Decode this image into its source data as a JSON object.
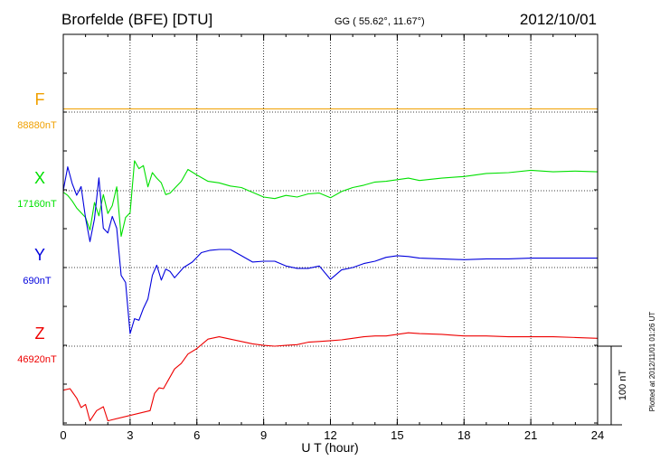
{
  "header": {
    "station": "Brorfelde (BFE)  [DTU]",
    "coords": "GG ( 55.62°,  11.67°)",
    "date": "2012/10/01"
  },
  "plot_note": "Plotted at 2012/11/01 01:26 UT",
  "scale_label": "100 nT",
  "colors": {
    "F": "#f0a000",
    "X": "#00e000",
    "Y": "#0000dd",
    "Z": "#ee0000"
  },
  "chart_data": {
    "type": "line",
    "xlabel": "U T (hour)",
    "xlim": [
      0,
      24
    ],
    "xticks": [
      0,
      3,
      6,
      9,
      12,
      15,
      18,
      21,
      24
    ],
    "grid": true,
    "series": [
      {
        "name": "F",
        "baseline_label": "88880nT",
        "baseline": 88880,
        "x": [
          0,
          24
        ],
        "y": [
          88884,
          88884
        ]
      },
      {
        "name": "X",
        "baseline_label": "17160nT",
        "baseline": 17160,
        "x": [
          0,
          0.2,
          0.4,
          0.6,
          0.8,
          1.0,
          1.2,
          1.4,
          1.6,
          1.8,
          2.0,
          2.2,
          2.4,
          2.6,
          2.8,
          3.0,
          3.2,
          3.4,
          3.6,
          3.8,
          4.0,
          4.2,
          4.4,
          4.6,
          4.8,
          5.0,
          5.3,
          5.6,
          6.0,
          6.5,
          7.0,
          7.5,
          8.0,
          8.5,
          9.0,
          9.5,
          10.0,
          10.5,
          11.0,
          11.5,
          12.0,
          12.5,
          13.0,
          13.5,
          14.0,
          14.5,
          15.0,
          15.5,
          16.0,
          17.0,
          18.0,
          19.0,
          20.0,
          21.0,
          22.0,
          23.0,
          24.0
        ],
        "y": [
          17158,
          17154,
          17147,
          17138,
          17132,
          17126,
          17110,
          17145,
          17128,
          17155,
          17131,
          17141,
          17165,
          17102,
          17126,
          17132,
          17198,
          17188,
          17192,
          17165,
          17183,
          17176,
          17170,
          17155,
          17157,
          17163,
          17172,
          17187,
          17180,
          17172,
          17170,
          17166,
          17164,
          17158,
          17152,
          17150,
          17154,
          17152,
          17156,
          17157,
          17151,
          17159,
          17164,
          17167,
          17171,
          17172,
          17174,
          17176,
          17173,
          17176,
          17178,
          17182,
          17183,
          17186,
          17184,
          17185,
          17184
        ]
      },
      {
        "name": "Y",
        "baseline_label": "690nT",
        "baseline": 690,
        "x": [
          0,
          0.2,
          0.4,
          0.6,
          0.8,
          1.0,
          1.2,
          1.4,
          1.6,
          1.8,
          2.0,
          2.2,
          2.4,
          2.6,
          2.8,
          3.0,
          3.2,
          3.4,
          3.6,
          3.8,
          4.0,
          4.2,
          4.4,
          4.6,
          4.8,
          5.0,
          5.4,
          5.8,
          6.2,
          6.6,
          7.0,
          7.5,
          8.0,
          8.5,
          9.0,
          9.5,
          10.0,
          10.5,
          11.0,
          11.5,
          12.0,
          12.5,
          13.0,
          13.5,
          14.0,
          14.5,
          15.0,
          15.5,
          16.0,
          17.0,
          18.0,
          19.0,
          20.0,
          21.0,
          22.0,
          23.0,
          24.0
        ],
        "y": [
          788,
          818,
          797,
          782,
          793,
          753,
          723,
          752,
          804,
          740,
          734,
          755,
          740,
          680,
          671,
          606,
          625,
          623,
          638,
          650,
          680,
          693,
          674,
          688,
          685,
          677,
          690,
          697,
          709,
          712,
          713,
          713,
          705,
          697,
          698,
          698,
          692,
          689,
          689,
          692,
          675,
          687,
          690,
          695,
          698,
          703,
          705,
          704,
          702,
          701,
          700,
          701,
          701,
          702,
          702,
          702,
          702
        ]
      },
      {
        "name": "Z",
        "baseline_label": "46920nT",
        "baseline": 46920,
        "x": [
          0,
          0.3,
          0.6,
          0.8,
          1.0,
          1.2,
          1.5,
          1.8,
          2.0,
          3.9,
          4.1,
          4.3,
          4.5,
          4.7,
          5.0,
          5.3,
          5.6,
          6.0,
          6.5,
          7.0,
          7.5,
          8.0,
          8.5,
          9.0,
          9.5,
          10.0,
          10.5,
          11.0,
          11.5,
          12.0,
          12.5,
          13.0,
          13.5,
          14.0,
          14.5,
          15.0,
          15.5,
          16.0,
          17.0,
          18.0,
          19.0,
          20.0,
          21.0,
          22.0,
          23.0,
          24.0
        ],
        "y": [
          46864,
          46866,
          46854,
          46842,
          46846,
          46825,
          46838,
          46843,
          46825,
          46838,
          46860,
          46867,
          46866,
          46876,
          46891,
          46898,
          46910,
          46917,
          46929,
          46932,
          46929,
          46926,
          46923,
          46921,
          46920,
          46921,
          46922,
          46925,
          46926,
          46927,
          46928,
          46930,
          46932,
          46933,
          46933,
          46935,
          46937,
          46936,
          46935,
          46933,
          46933,
          46932,
          46932,
          46932,
          46931,
          46930
        ]
      }
    ]
  }
}
